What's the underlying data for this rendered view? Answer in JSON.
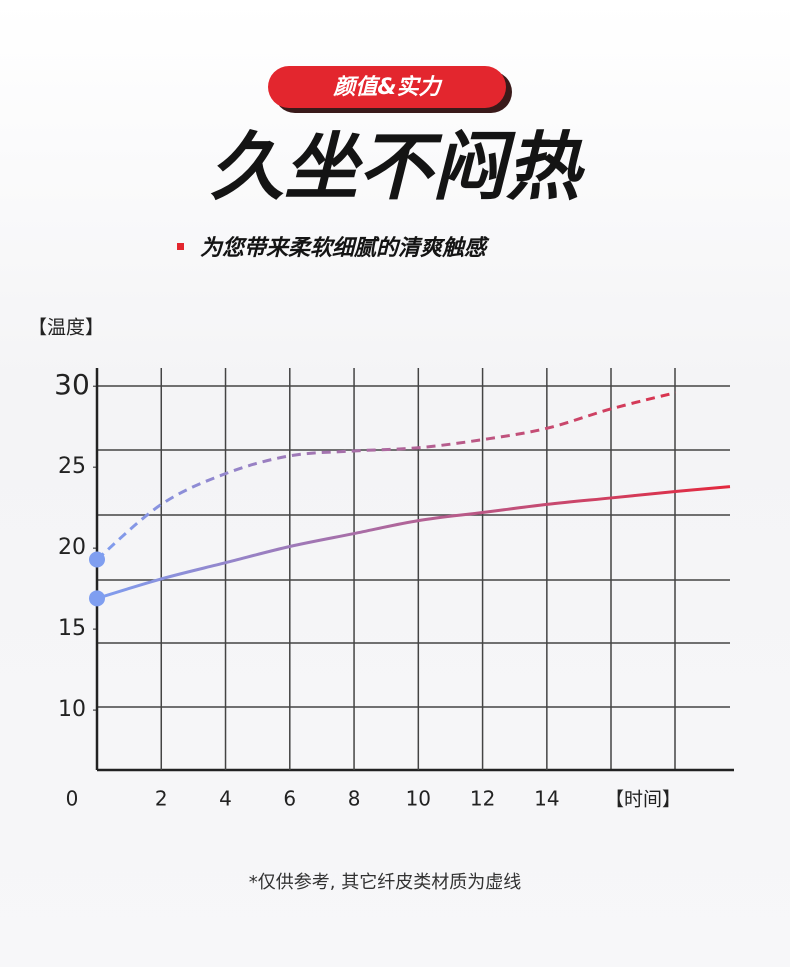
{
  "badge": "颜值&实力",
  "headline": "久坐不闷热",
  "subheadline": "为您带来柔软细腻的清爽触感",
  "chart_data": {
    "type": "line",
    "y_label": "【温度】",
    "x_label": "【时间】",
    "x": [
      0,
      2,
      4,
      6,
      8,
      10,
      12,
      14,
      16,
      18,
      19.7
    ],
    "xlim": [
      0,
      19.7
    ],
    "xticks": [
      0,
      2,
      4,
      6,
      8,
      10,
      12,
      14
    ],
    "ylim": [
      6.3,
      31
    ],
    "yticks": [
      10,
      15,
      20,
      25,
      30
    ],
    "colors": [
      "#7f9ef0",
      "#e3283d"
    ],
    "series": [
      {
        "style": "solid",
        "values": [
          16.9,
          18.1,
          19.1,
          20.1,
          20.9,
          21.7,
          22.2,
          22.7,
          23.1,
          23.5,
          23.8
        ]
      },
      {
        "style": "dashed",
        "values": [
          19.3,
          22.7,
          24.6,
          25.7,
          26.0,
          26.2,
          26.7,
          27.4,
          28.6,
          29.6,
          null
        ]
      }
    ]
  },
  "footnote": "*仅供参考, 其它纤皮类材质为虚线"
}
